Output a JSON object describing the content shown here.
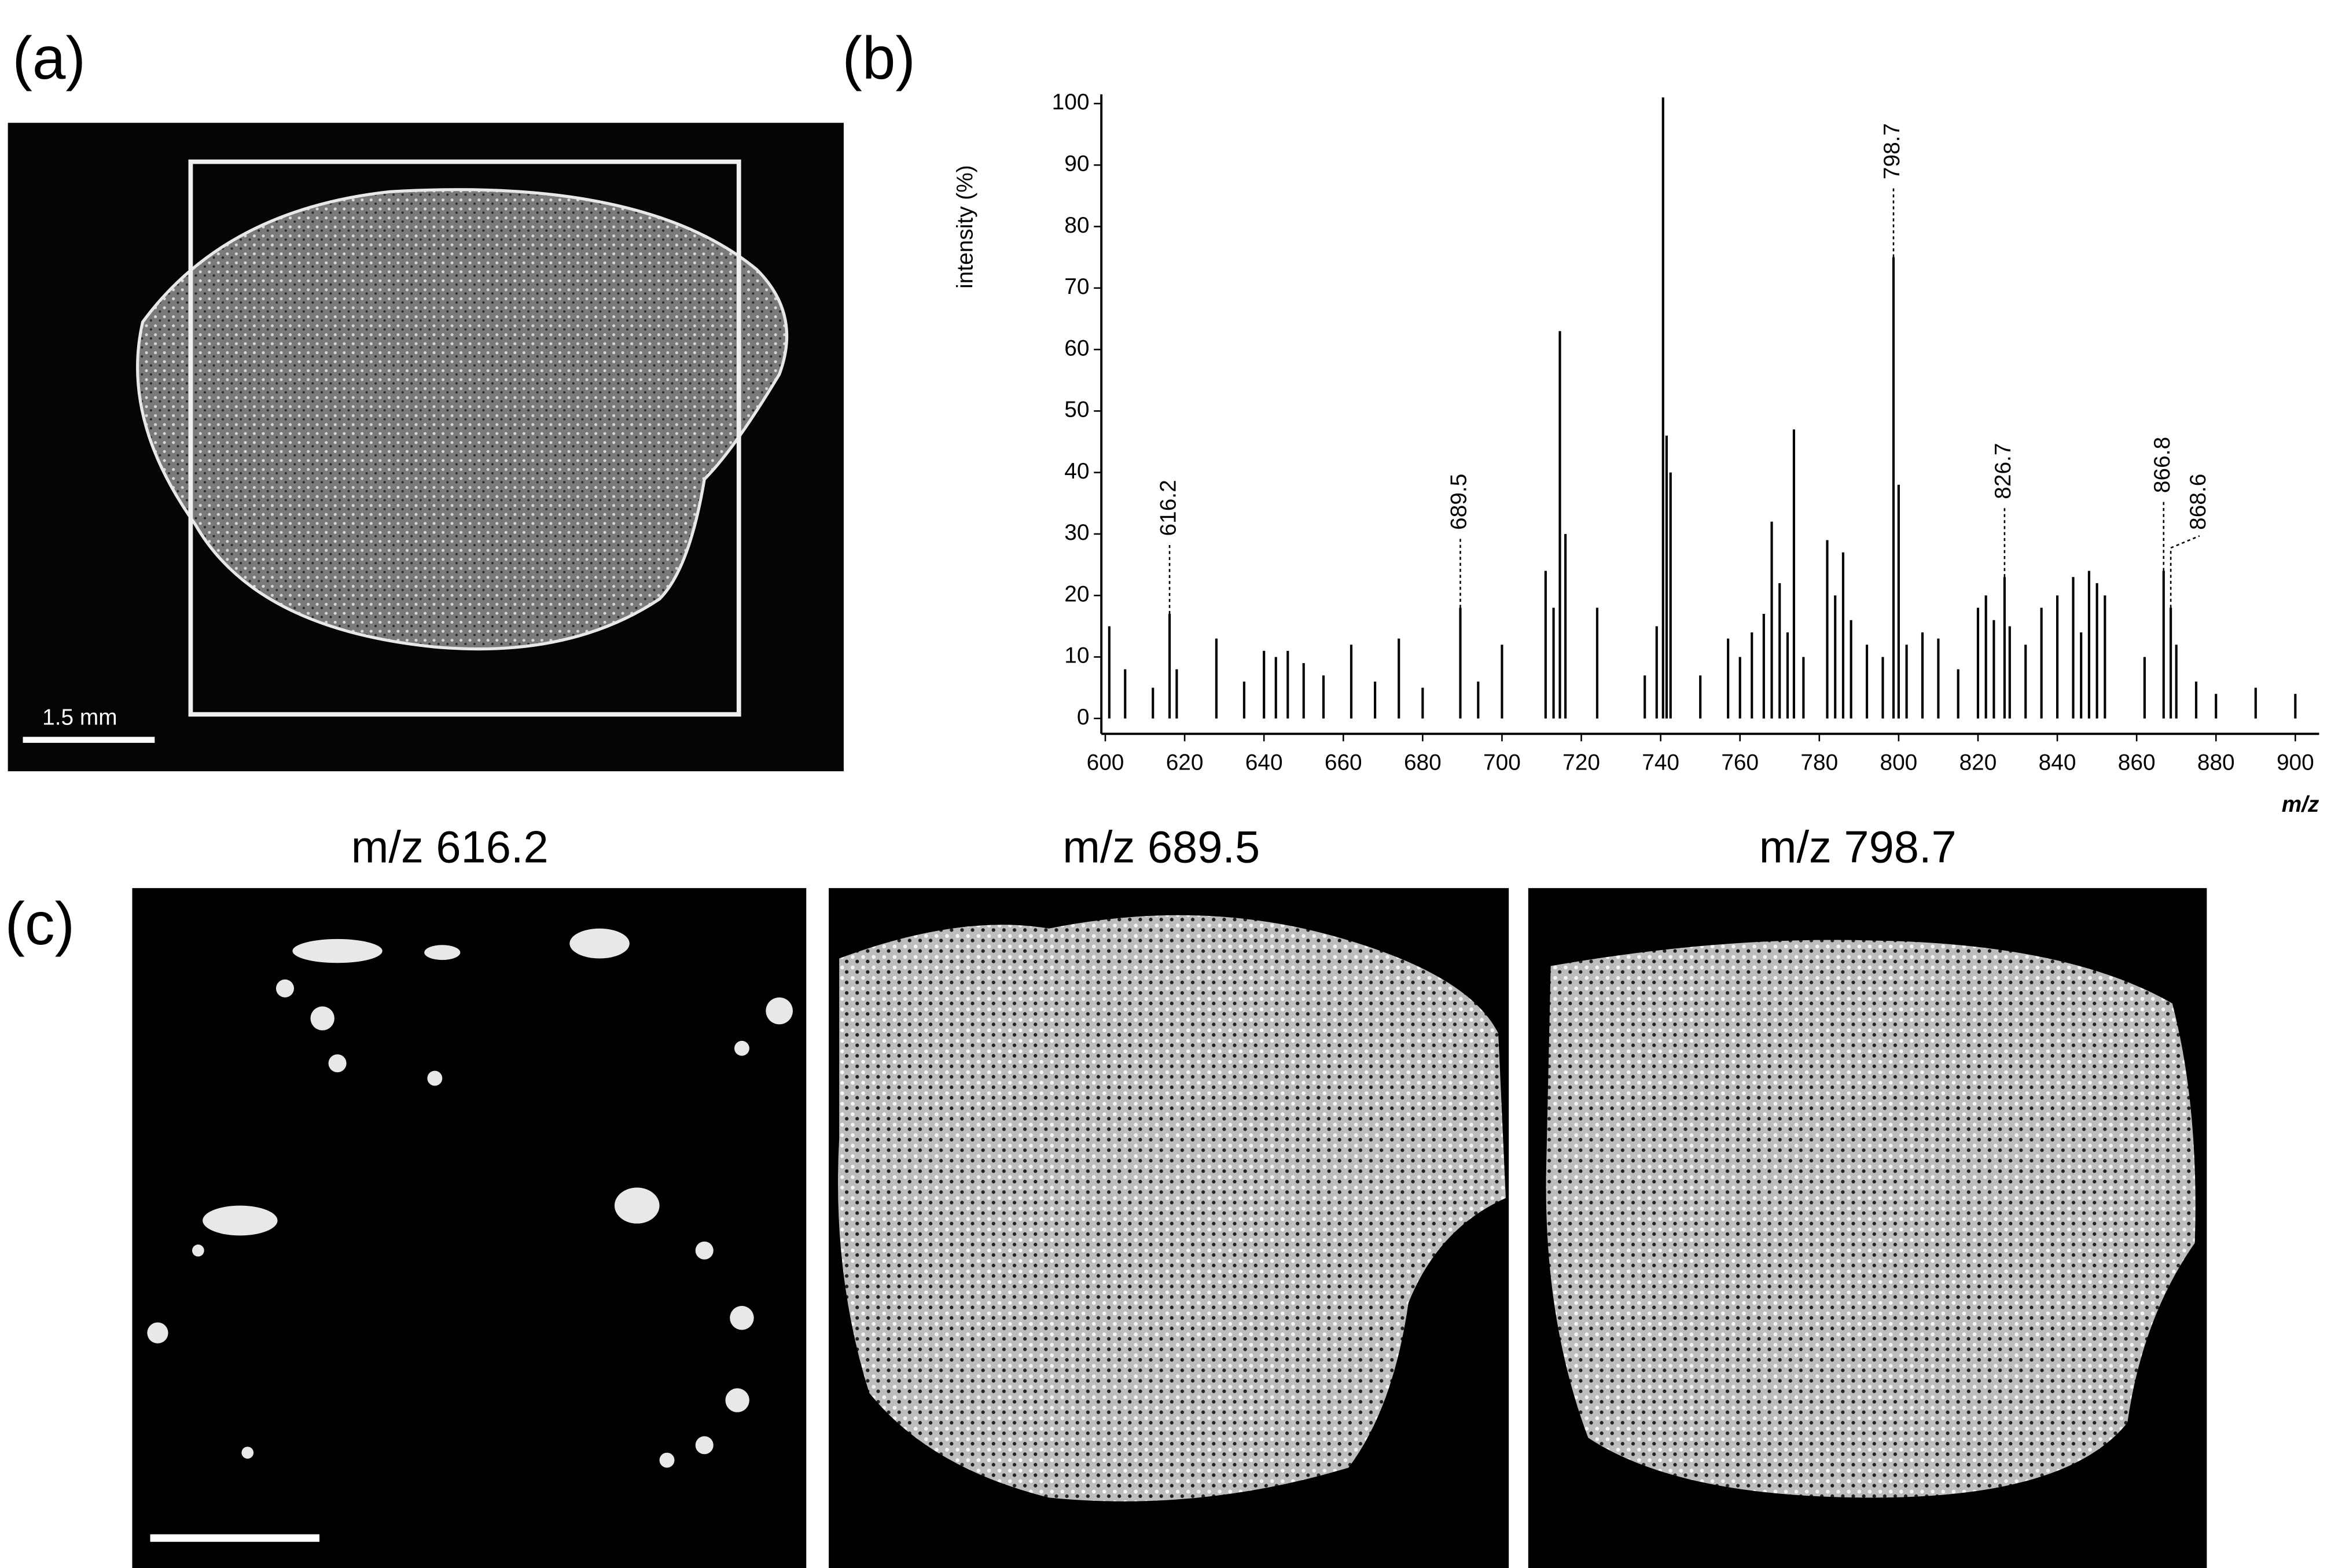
{
  "panels": {
    "a": {
      "label": "(a)",
      "scale_bar": "1.5 mm"
    },
    "b": {
      "label": "(b)"
    },
    "c": {
      "label": "(c)",
      "images": [
        "m/z 616.2",
        "m/z 689.5",
        "m/z 798.7"
      ]
    }
  },
  "chart_data": {
    "type": "bar",
    "x_label": "m/z",
    "y_label": "intensity (%)",
    "color": "#000000",
    "x": [
      601,
      605,
      612,
      616.2,
      618,
      628,
      635,
      640,
      643,
      646,
      650,
      655,
      662,
      668,
      674,
      680,
      689.5,
      694,
      700,
      711,
      713,
      714.6,
      716,
      724,
      736,
      739,
      740.6,
      741.5,
      742.5,
      750,
      757,
      760,
      763,
      766,
      768,
      770,
      772,
      773.6,
      776,
      782,
      784,
      786,
      788,
      792,
      796,
      798.7,
      800,
      802,
      806,
      810,
      815,
      820,
      822,
      824,
      826.7,
      828,
      832,
      836,
      840,
      844,
      846,
      848,
      850,
      852,
      862,
      866.8,
      868.6,
      870,
      875,
      880,
      890,
      900
    ],
    "values": [
      15,
      8,
      5,
      17,
      8,
      13,
      6,
      11,
      10,
      11,
      9,
      7,
      12,
      6,
      13,
      5,
      18,
      6,
      12,
      24,
      18,
      63,
      30,
      18,
      7,
      15,
      101,
      46,
      40,
      7,
      13,
      10,
      14,
      17,
      32,
      22,
      14,
      47,
      10,
      29,
      20,
      27,
      16,
      12,
      10,
      75,
      38,
      12,
      14,
      13,
      8,
      18,
      20,
      16,
      23,
      15,
      12,
      18,
      20,
      23,
      14,
      24,
      22,
      20,
      10,
      24,
      18,
      12,
      6,
      4,
      5,
      4
    ],
    "peak_labels": [
      616.2,
      689.5,
      798.7,
      826.7,
      866.8,
      868.6
    ],
    "xlim": [
      599,
      906
    ],
    "ylim": [
      -2.5,
      101.5
    ],
    "xticks": [
      600,
      620,
      640,
      660,
      680,
      700,
      720,
      740,
      760,
      780,
      800,
      820,
      840,
      860,
      880,
      900
    ],
    "yticks": [
      0,
      10,
      20,
      30,
      40,
      50,
      60,
      70,
      80,
      90,
      100
    ]
  }
}
